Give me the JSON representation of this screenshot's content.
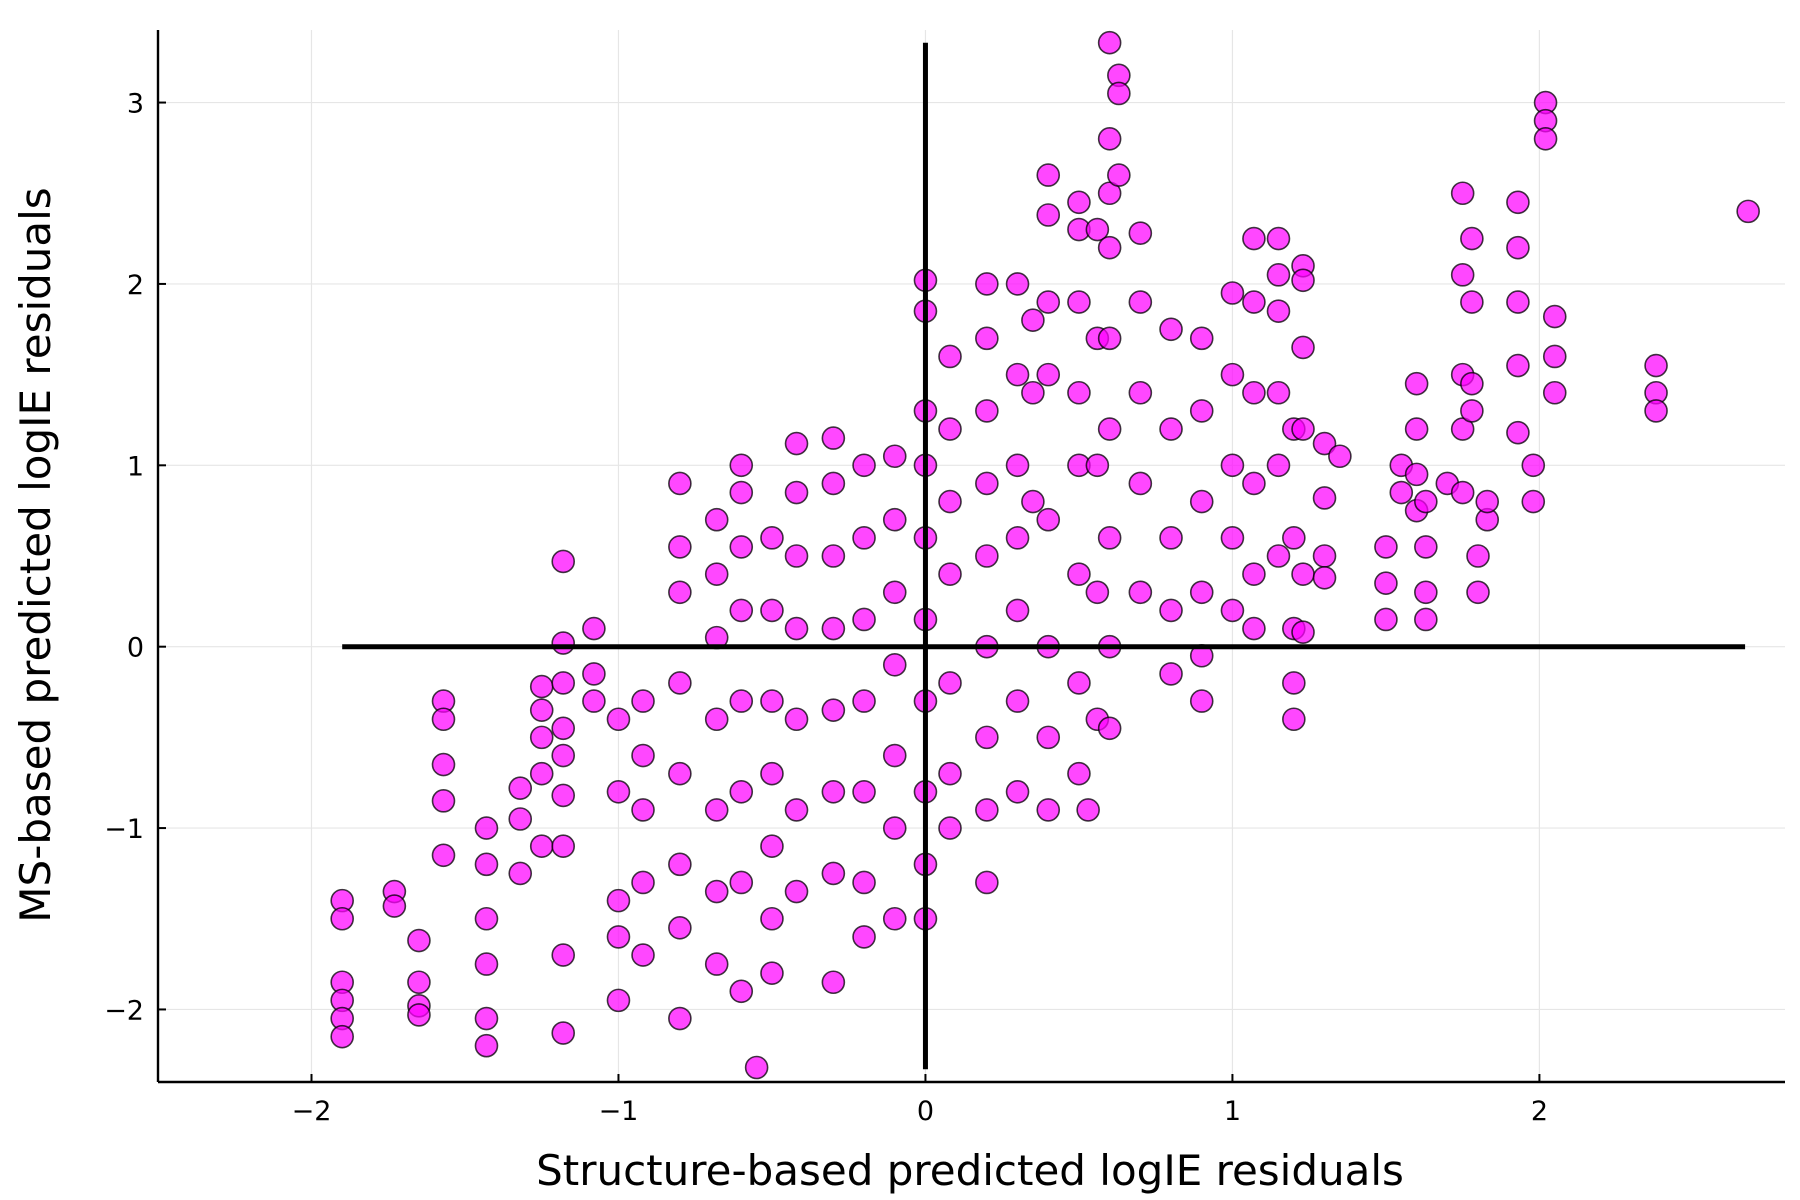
{
  "chart_data": {
    "type": "scatter",
    "title": "",
    "xlabel": "Structure-based predicted logIE residuals",
    "ylabel": "MS-based predicted logIE residuals",
    "xlim": [
      -2.5,
      2.8
    ],
    "ylim": [
      -2.4,
      3.4
    ],
    "x_ticks": [
      {
        "value": -2,
        "label": "−2"
      },
      {
        "value": -1,
        "label": "−1"
      },
      {
        "value": 0,
        "label": "0"
      },
      {
        "value": 1,
        "label": "1"
      },
      {
        "value": 2,
        "label": "2"
      }
    ],
    "y_ticks": [
      {
        "value": -2,
        "label": "−2"
      },
      {
        "value": -1,
        "label": "−1"
      },
      {
        "value": 0,
        "label": "0"
      },
      {
        "value": 1,
        "label": "1"
      },
      {
        "value": 2,
        "label": "2"
      },
      {
        "value": 3,
        "label": "3"
      }
    ],
    "grid": true,
    "legend": "none",
    "marker_color": "#ff00ff",
    "reference_lines": [
      {
        "orientation": "horizontal",
        "y": 0,
        "x_range": [
          -1.9,
          2.67
        ]
      },
      {
        "orientation": "vertical",
        "x": 0,
        "y_range": [
          -2.33,
          3.33
        ]
      }
    ],
    "series": [
      {
        "points": [
          [
            -1.9,
            -1.4
          ],
          [
            -1.9,
            -1.5
          ],
          [
            -1.9,
            -1.85
          ],
          [
            -1.9,
            -1.95
          ],
          [
            -1.9,
            -2.05
          ],
          [
            -1.9,
            -2.15
          ],
          [
            -1.73,
            -1.35
          ],
          [
            -1.73,
            -1.43
          ],
          [
            -1.65,
            -1.62
          ],
          [
            -1.65,
            -1.85
          ],
          [
            -1.65,
            -1.98
          ],
          [
            -1.65,
            -2.03
          ],
          [
            -1.57,
            -0.3
          ],
          [
            -1.57,
            -0.4
          ],
          [
            -1.57,
            -0.65
          ],
          [
            -1.57,
            -0.85
          ],
          [
            -1.57,
            -1.15
          ],
          [
            -1.43,
            -1.0
          ],
          [
            -1.43,
            -1.2
          ],
          [
            -1.43,
            -1.5
          ],
          [
            -1.43,
            -1.75
          ],
          [
            -1.43,
            -2.05
          ],
          [
            -1.43,
            -2.2
          ],
          [
            -1.32,
            -0.78
          ],
          [
            -1.32,
            -0.95
          ],
          [
            -1.32,
            -1.25
          ],
          [
            -1.25,
            -0.22
          ],
          [
            -1.25,
            -0.35
          ],
          [
            -1.25,
            -0.5
          ],
          [
            -1.25,
            -0.7
          ],
          [
            -1.25,
            -1.1
          ],
          [
            -1.18,
            0.47
          ],
          [
            -1.18,
            0.02
          ],
          [
            -1.18,
            -0.2
          ],
          [
            -1.18,
            -0.45
          ],
          [
            -1.18,
            -0.6
          ],
          [
            -1.18,
            -0.82
          ],
          [
            -1.18,
            -1.1
          ],
          [
            -1.18,
            -1.7
          ],
          [
            -1.18,
            -2.13
          ],
          [
            -1.08,
            0.1
          ],
          [
            -1.08,
            -0.15
          ],
          [
            -1.08,
            -0.3
          ],
          [
            -1.0,
            -0.4
          ],
          [
            -1.0,
            -0.8
          ],
          [
            -1.0,
            -1.4
          ],
          [
            -1.0,
            -1.6
          ],
          [
            -1.0,
            -1.95
          ],
          [
            -0.92,
            -0.3
          ],
          [
            -0.92,
            -0.6
          ],
          [
            -0.92,
            -0.9
          ],
          [
            -0.92,
            -1.3
          ],
          [
            -0.92,
            -1.7
          ],
          [
            -0.8,
            0.9
          ],
          [
            -0.8,
            0.55
          ],
          [
            -0.8,
            0.3
          ],
          [
            -0.8,
            -0.2
          ],
          [
            -0.8,
            -0.7
          ],
          [
            -0.8,
            -1.2
          ],
          [
            -0.8,
            -1.55
          ],
          [
            -0.8,
            -2.05
          ],
          [
            -0.68,
            0.7
          ],
          [
            -0.68,
            0.4
          ],
          [
            -0.68,
            0.05
          ],
          [
            -0.68,
            -0.4
          ],
          [
            -0.68,
            -0.9
          ],
          [
            -0.68,
            -1.35
          ],
          [
            -0.68,
            -1.75
          ],
          [
            -0.6,
            1.0
          ],
          [
            -0.6,
            0.85
          ],
          [
            -0.6,
            0.55
          ],
          [
            -0.6,
            0.2
          ],
          [
            -0.6,
            -0.3
          ],
          [
            -0.6,
            -0.8
          ],
          [
            -0.6,
            -1.3
          ],
          [
            -0.6,
            -1.9
          ],
          [
            -0.55,
            -2.32
          ],
          [
            -0.5,
            0.6
          ],
          [
            -0.5,
            0.2
          ],
          [
            -0.5,
            -0.3
          ],
          [
            -0.5,
            -0.7
          ],
          [
            -0.5,
            -1.1
          ],
          [
            -0.5,
            -1.5
          ],
          [
            -0.5,
            -1.8
          ],
          [
            -0.42,
            1.12
          ],
          [
            -0.42,
            0.85
          ],
          [
            -0.42,
            0.5
          ],
          [
            -0.42,
            0.1
          ],
          [
            -0.42,
            -0.4
          ],
          [
            -0.42,
            -0.9
          ],
          [
            -0.42,
            -1.35
          ],
          [
            -0.3,
            1.15
          ],
          [
            -0.3,
            0.9
          ],
          [
            -0.3,
            0.5
          ],
          [
            -0.3,
            0.1
          ],
          [
            -0.3,
            -0.35
          ],
          [
            -0.3,
            -0.8
          ],
          [
            -0.3,
            -1.25
          ],
          [
            -0.3,
            -1.85
          ],
          [
            -0.2,
            1.0
          ],
          [
            -0.2,
            0.6
          ],
          [
            -0.2,
            0.15
          ],
          [
            -0.2,
            -0.3
          ],
          [
            -0.2,
            -0.8
          ],
          [
            -0.2,
            -1.3
          ],
          [
            -0.2,
            -1.6
          ],
          [
            -0.1,
            1.05
          ],
          [
            -0.1,
            0.7
          ],
          [
            -0.1,
            0.3
          ],
          [
            -0.1,
            -0.1
          ],
          [
            -0.1,
            -0.6
          ],
          [
            -0.1,
            -1.0
          ],
          [
            -0.1,
            -1.5
          ],
          [
            0.0,
            2.02
          ],
          [
            0.0,
            1.85
          ],
          [
            0.0,
            1.3
          ],
          [
            0.0,
            1.0
          ],
          [
            0.0,
            0.6
          ],
          [
            0.0,
            0.15
          ],
          [
            0.0,
            -0.3
          ],
          [
            0.0,
            -0.8
          ],
          [
            0.0,
            -1.2
          ],
          [
            0.0,
            -1.5
          ],
          [
            0.08,
            1.6
          ],
          [
            0.08,
            1.2
          ],
          [
            0.08,
            0.8
          ],
          [
            0.08,
            0.4
          ],
          [
            0.08,
            -0.2
          ],
          [
            0.08,
            -0.7
          ],
          [
            0.08,
            -1.0
          ],
          [
            0.2,
            2.0
          ],
          [
            0.2,
            1.7
          ],
          [
            0.2,
            1.3
          ],
          [
            0.2,
            0.9
          ],
          [
            0.2,
            0.5
          ],
          [
            0.2,
            0.0
          ],
          [
            0.2,
            -0.5
          ],
          [
            0.2,
            -0.9
          ],
          [
            0.2,
            -1.3
          ],
          [
            0.3,
            2.0
          ],
          [
            0.3,
            1.5
          ],
          [
            0.3,
            1.0
          ],
          [
            0.3,
            0.6
          ],
          [
            0.3,
            0.2
          ],
          [
            0.3,
            -0.3
          ],
          [
            0.3,
            -0.8
          ],
          [
            0.35,
            1.8
          ],
          [
            0.35,
            1.4
          ],
          [
            0.35,
            0.8
          ],
          [
            0.4,
            2.6
          ],
          [
            0.4,
            2.38
          ],
          [
            0.4,
            1.9
          ],
          [
            0.4,
            1.5
          ],
          [
            0.4,
            0.7
          ],
          [
            0.4,
            0.0
          ],
          [
            0.4,
            -0.5
          ],
          [
            0.4,
            -0.9
          ],
          [
            0.5,
            2.45
          ],
          [
            0.5,
            2.3
          ],
          [
            0.5,
            1.9
          ],
          [
            0.5,
            1.4
          ],
          [
            0.5,
            1.0
          ],
          [
            0.5,
            0.4
          ],
          [
            0.5,
            -0.2
          ],
          [
            0.5,
            -0.7
          ],
          [
            0.53,
            -0.9
          ],
          [
            0.56,
            2.3
          ],
          [
            0.56,
            1.7
          ],
          [
            0.56,
            1.0
          ],
          [
            0.56,
            0.3
          ],
          [
            0.56,
            -0.4
          ],
          [
            0.6,
            3.33
          ],
          [
            0.6,
            2.8
          ],
          [
            0.6,
            2.5
          ],
          [
            0.6,
            2.2
          ],
          [
            0.6,
            1.7
          ],
          [
            0.6,
            1.2
          ],
          [
            0.6,
            0.6
          ],
          [
            0.6,
            0.0
          ],
          [
            0.6,
            -0.45
          ],
          [
            0.63,
            3.15
          ],
          [
            0.63,
            3.05
          ],
          [
            0.63,
            2.6
          ],
          [
            0.7,
            2.28
          ],
          [
            0.7,
            1.9
          ],
          [
            0.7,
            1.4
          ],
          [
            0.7,
            0.9
          ],
          [
            0.7,
            0.3
          ],
          [
            0.8,
            1.75
          ],
          [
            0.8,
            1.2
          ],
          [
            0.8,
            0.6
          ],
          [
            0.8,
            0.2
          ],
          [
            0.8,
            -0.15
          ],
          [
            0.9,
            1.7
          ],
          [
            0.9,
            1.3
          ],
          [
            0.9,
            0.8
          ],
          [
            0.9,
            0.3
          ],
          [
            0.9,
            -0.05
          ],
          [
            0.9,
            -0.3
          ],
          [
            1.0,
            1.95
          ],
          [
            1.0,
            1.5
          ],
          [
            1.0,
            1.0
          ],
          [
            1.0,
            0.6
          ],
          [
            1.0,
            0.2
          ],
          [
            1.07,
            2.25
          ],
          [
            1.07,
            1.9
          ],
          [
            1.07,
            1.4
          ],
          [
            1.07,
            0.9
          ],
          [
            1.07,
            0.4
          ],
          [
            1.07,
            0.1
          ],
          [
            1.15,
            2.25
          ],
          [
            1.15,
            2.05
          ],
          [
            1.15,
            1.85
          ],
          [
            1.15,
            1.4
          ],
          [
            1.15,
            1.0
          ],
          [
            1.15,
            0.5
          ],
          [
            1.2,
            1.2
          ],
          [
            1.2,
            0.6
          ],
          [
            1.2,
            0.1
          ],
          [
            1.2,
            -0.2
          ],
          [
            1.2,
            -0.4
          ],
          [
            1.23,
            2.1
          ],
          [
            1.23,
            2.02
          ],
          [
            1.23,
            1.65
          ],
          [
            1.23,
            1.2
          ],
          [
            1.23,
            0.4
          ],
          [
            1.23,
            0.08
          ],
          [
            1.3,
            1.12
          ],
          [
            1.3,
            0.82
          ],
          [
            1.3,
            0.5
          ],
          [
            1.3,
            0.38
          ],
          [
            1.35,
            1.05
          ],
          [
            1.5,
            0.55
          ],
          [
            1.5,
            0.35
          ],
          [
            1.5,
            0.15
          ],
          [
            1.55,
            0.85
          ],
          [
            1.55,
            1.0
          ],
          [
            1.6,
            1.45
          ],
          [
            1.6,
            1.2
          ],
          [
            1.6,
            0.95
          ],
          [
            1.6,
            0.75
          ],
          [
            1.63,
            0.8
          ],
          [
            1.63,
            0.55
          ],
          [
            1.63,
            0.3
          ],
          [
            1.63,
            0.15
          ],
          [
            1.7,
            0.9
          ],
          [
            1.75,
            2.5
          ],
          [
            1.75,
            2.05
          ],
          [
            1.75,
            1.5
          ],
          [
            1.75,
            1.2
          ],
          [
            1.75,
            0.85
          ],
          [
            1.78,
            2.25
          ],
          [
            1.78,
            1.9
          ],
          [
            1.78,
            1.45
          ],
          [
            1.78,
            1.3
          ],
          [
            1.8,
            0.5
          ],
          [
            1.8,
            0.3
          ],
          [
            1.83,
            0.7
          ],
          [
            1.83,
            0.8
          ],
          [
            1.93,
            2.45
          ],
          [
            1.93,
            2.2
          ],
          [
            1.93,
            1.9
          ],
          [
            1.93,
            1.55
          ],
          [
            1.93,
            1.18
          ],
          [
            1.98,
            1.0
          ],
          [
            1.98,
            0.8
          ],
          [
            2.02,
            3.0
          ],
          [
            2.02,
            2.9
          ],
          [
            2.02,
            2.8
          ],
          [
            2.05,
            1.82
          ],
          [
            2.05,
            1.6
          ],
          [
            2.05,
            1.4
          ],
          [
            2.38,
            1.55
          ],
          [
            2.38,
            1.4
          ],
          [
            2.38,
            1.3
          ],
          [
            2.68,
            2.4
          ]
        ]
      }
    ]
  }
}
